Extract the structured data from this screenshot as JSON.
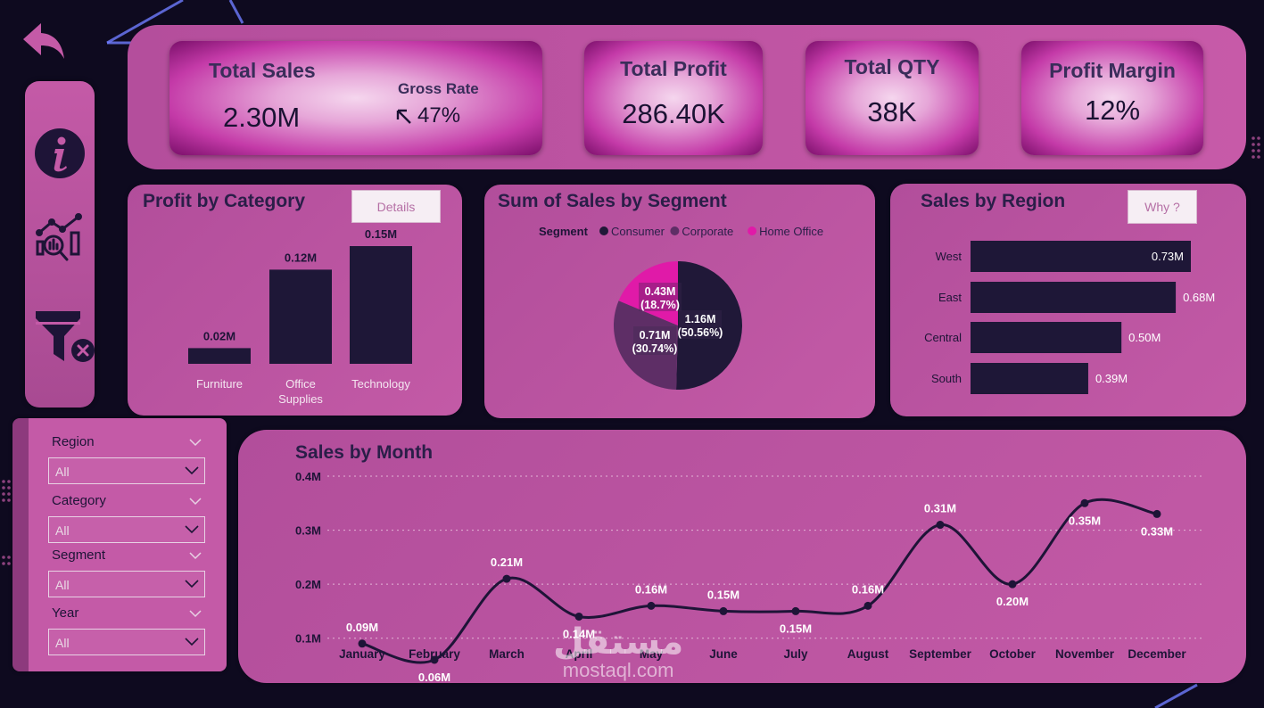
{
  "kpis": {
    "total_sales": {
      "title": "Total Sales",
      "value": "2.30M",
      "gross_rate_label": "Gross Rate",
      "gross_rate_value": "47%"
    },
    "total_profit": {
      "title": "Total Profit",
      "value": "286.40K"
    },
    "total_qty": {
      "title": "Total QTY",
      "value": "38K"
    },
    "profit_margin": {
      "title": "Profit Margin",
      "value": "12%"
    }
  },
  "nav": {
    "icons": [
      "back-arrow-icon",
      "info-icon",
      "analytics-icon",
      "clear-filter-icon"
    ]
  },
  "profit_by_category": {
    "title": "Profit by Category",
    "button_label": "Details",
    "chart_data": {
      "type": "bar",
      "categories": [
        "Furniture",
        "Office\nSupplies",
        "Technology"
      ],
      "values": [
        0.02,
        0.12,
        0.15
      ],
      "data_labels": [
        "0.02M",
        "0.12M",
        "0.15M"
      ],
      "ylim": [
        0,
        0.15
      ]
    }
  },
  "sales_by_segment": {
    "title": "Sum of Sales by Segment",
    "legend_title": "Segment",
    "chart_data": {
      "type": "pie",
      "slices": [
        {
          "name": "Consumer",
          "value": 1.16,
          "label": "1.16M",
          "pct": "(50.56%)",
          "color": "#201838"
        },
        {
          "name": "Corporate",
          "value": 0.71,
          "label": "0.71M",
          "pct": "(30.74%)",
          "color": "#5e2e66"
        },
        {
          "name": "Home Office",
          "value": 0.43,
          "label": "0.43M",
          "pct": "(18.7%)",
          "color": "#e01aa8"
        }
      ]
    }
  },
  "sales_by_region": {
    "title": "Sales by Region",
    "button_label": "Why ?",
    "chart_data": {
      "type": "bar",
      "orientation": "horizontal",
      "categories": [
        "West",
        "East",
        "Central",
        "South"
      ],
      "values": [
        0.73,
        0.68,
        0.5,
        0.39
      ],
      "data_labels": [
        "0.73M",
        "0.68M",
        "0.50M",
        "0.39M"
      ],
      "xlim": [
        0,
        0.73
      ]
    }
  },
  "slicers": [
    {
      "label": "Region",
      "value": "All"
    },
    {
      "label": "Category",
      "value": "All"
    },
    {
      "label": "Segment",
      "value": "All"
    },
    {
      "label": "Year",
      "value": "All"
    }
  ],
  "sales_by_month": {
    "title": "Sales by Month",
    "chart_data": {
      "type": "line",
      "x": [
        "January",
        "February",
        "March",
        "April",
        "May",
        "June",
        "July",
        "August",
        "September",
        "October",
        "November",
        "December"
      ],
      "values": [
        0.09,
        0.06,
        0.21,
        0.14,
        0.16,
        0.15,
        0.15,
        0.16,
        0.31,
        0.2,
        0.35,
        0.33
      ],
      "data_labels": [
        "0.09M",
        "0.06M",
        "0.21M",
        "0.14M",
        "0.16M",
        "0.15M",
        "0.15M",
        "0.16M",
        "0.31M",
        "0.20M",
        "0.35M",
        "0.33M"
      ],
      "yticks": [
        "0.1M",
        "0.2M",
        "0.3M",
        "0.4M"
      ],
      "ytick_values": [
        0.1,
        0.2,
        0.3,
        0.4
      ],
      "ylim": [
        0.05,
        0.4
      ],
      "grid": true
    }
  },
  "watermark": {
    "arabic": "مستقل",
    "latin": "mostaql.com"
  },
  "colors": {
    "accent": "#c45aa7",
    "dark": "#1e1437",
    "bar": "#1e1737",
    "magenta": "#e01aa8"
  }
}
